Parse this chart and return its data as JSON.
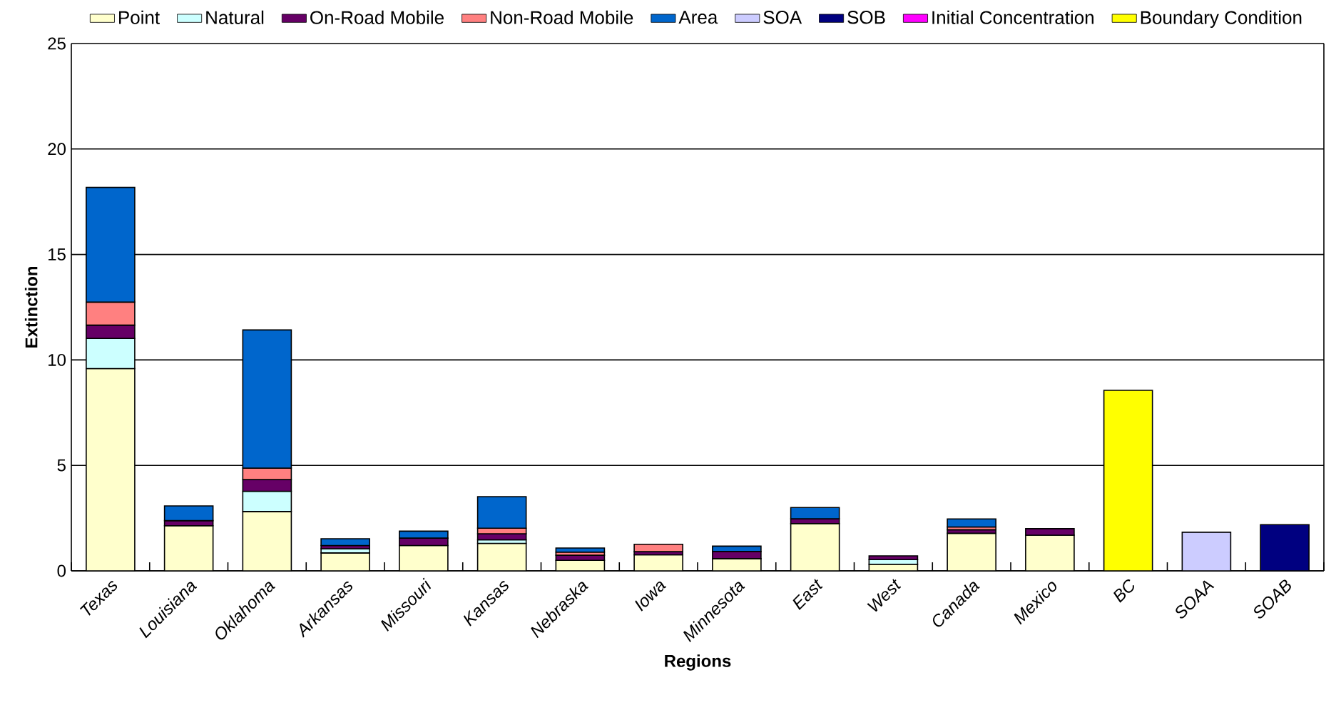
{
  "chart_data": {
    "type": "bar",
    "stacked": true,
    "xlabel": "Regions",
    "ylabel": "Extinction",
    "categories": [
      "Texas",
      "Louisiana",
      "Oklahoma",
      "Arkansas",
      "Missouri",
      "Kansas",
      "Nebraska",
      "Iowa",
      "Minnesota",
      "East",
      "West",
      "Canada",
      "Mexico",
      "BC",
      "SOAA",
      "SOAB"
    ],
    "series": [
      {
        "name": "Point",
        "color": "#ffffcc",
        "values": [
          9.59,
          2.14,
          2.81,
          0.85,
          1.2,
          1.3,
          0.5,
          0.76,
          0.58,
          2.24,
          0.31,
          1.78,
          1.69,
          null,
          null,
          null
        ]
      },
      {
        "name": "Natural",
        "color": "#ccffff",
        "values": [
          1.43,
          null,
          0.96,
          0.2,
          null,
          0.17,
          null,
          null,
          null,
          null,
          0.22,
          null,
          null,
          null,
          null,
          null
        ]
      },
      {
        "name": "On-Road Mobile",
        "color": "#660066",
        "values": [
          0.63,
          0.24,
          0.56,
          0.15,
          0.35,
          0.29,
          0.24,
          0.15,
          0.34,
          0.23,
          0.18,
          0.17,
          0.31,
          null,
          null,
          null
        ]
      },
      {
        "name": "Non-Road Mobile",
        "color": "#ff8080",
        "values": [
          1.09,
          null,
          0.54,
          null,
          null,
          0.26,
          0.15,
          0.35,
          null,
          null,
          null,
          0.13,
          null,
          null,
          null,
          null
        ]
      },
      {
        "name": "Area",
        "color": "#0066cc",
        "values": [
          5.44,
          0.7,
          6.55,
          0.32,
          0.33,
          1.5,
          0.19,
          null,
          0.25,
          0.53,
          null,
          0.38,
          null,
          null,
          null,
          null
        ]
      },
      {
        "name": "SOA",
        "color": "#ccccff",
        "values": [
          null,
          null,
          null,
          null,
          null,
          null,
          null,
          null,
          null,
          null,
          null,
          null,
          null,
          null,
          1.83,
          null
        ]
      },
      {
        "name": "SOB",
        "color": "#000080",
        "values": [
          null,
          null,
          null,
          null,
          null,
          null,
          null,
          null,
          null,
          null,
          null,
          null,
          null,
          null,
          null,
          2.19
        ]
      },
      {
        "name": "Initial Concentration",
        "color": "#ff00ff",
        "values": [
          null,
          null,
          null,
          null,
          null,
          null,
          null,
          null,
          null,
          null,
          null,
          null,
          null,
          null,
          null,
          null
        ]
      },
      {
        "name": "Boundary Condition",
        "color": "#ffff00",
        "values": [
          null,
          null,
          null,
          null,
          null,
          null,
          null,
          null,
          null,
          null,
          null,
          null,
          null,
          8.56,
          null,
          null
        ]
      }
    ],
    "ylim": [
      0,
      25
    ],
    "yticks": [
      0,
      5,
      10,
      15,
      20,
      25
    ],
    "grid": "y",
    "legend": "top"
  }
}
